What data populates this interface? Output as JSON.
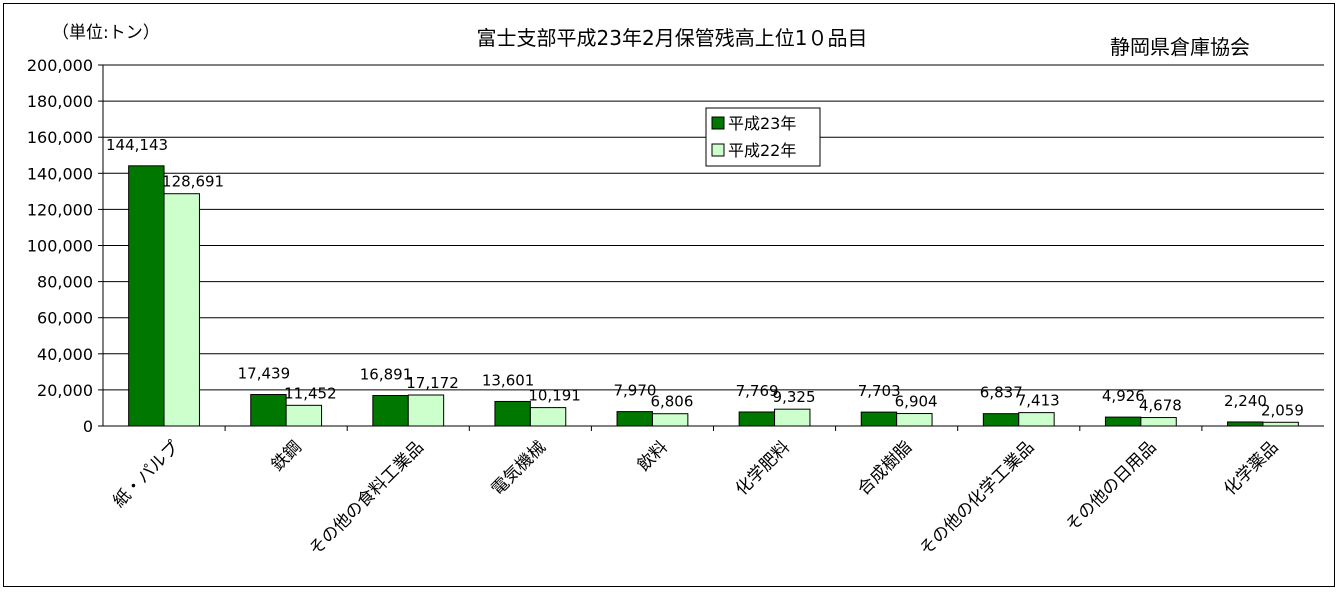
{
  "chart_data": {
    "type": "bar",
    "title": "富士支部平成23年2月保管残高上位1０品目",
    "unit_label": "（単位:トン）",
    "organization": "静岡県倉庫協会",
    "categories": [
      "紙・パルプ",
      "鉄鋼",
      "その他の食料工業品",
      "電気機械",
      "飲料",
      "化学肥料",
      "合成樹脂",
      "その他の化学工業品",
      "その他の日用品",
      "化学薬品"
    ],
    "series": [
      {
        "name": "平成23年",
        "color": "#007800",
        "values": [
          144143,
          17439,
          16891,
          13601,
          7970,
          7769,
          7703,
          6837,
          4926,
          2240
        ]
      },
      {
        "name": "平成22年",
        "color": "#ccffcc",
        "values": [
          128691,
          11452,
          17172,
          10191,
          6806,
          9325,
          6904,
          7413,
          4678,
          2059
        ]
      }
    ],
    "value_labels": [
      [
        "144,143",
        "17,439",
        "16,891",
        "13,601",
        "7,970",
        "7,769",
        "7,703",
        "6,837",
        "4,926",
        "2,240"
      ],
      [
        "128,691",
        "11,452",
        "17,172",
        "10,191",
        "6,806",
        "9,325",
        "6,904",
        "7,413",
        "4,678",
        "2,059"
      ]
    ],
    "y_ticks": [
      "0",
      "20,000",
      "40,000",
      "60,000",
      "80,000",
      "100,000",
      "120,000",
      "140,000",
      "160,000",
      "180,000",
      "200,000"
    ],
    "ylim": [
      0,
      200000
    ],
    "grid": true,
    "legend_position": "top-center"
  }
}
